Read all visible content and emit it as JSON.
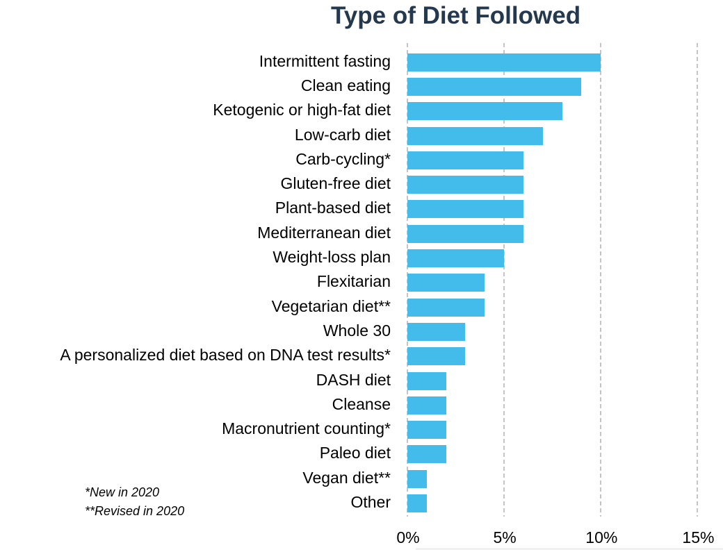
{
  "title": "Type of Diet Followed",
  "footnotes": [
    "*New in 2020",
    "**Revised in 2020"
  ],
  "chart_data": {
    "type": "bar",
    "orientation": "horizontal",
    "title": "Type of Diet Followed",
    "categories": [
      "Intermittent fasting",
      "Clean eating",
      "Ketogenic or high-fat diet",
      "Low-carb diet",
      "Carb-cycling*",
      "Gluten-free diet",
      "Plant-based diet",
      "Mediterranean diet",
      "Weight-loss plan",
      "Flexitarian",
      "Vegetarian diet**",
      "Whole 30",
      "A personalized diet based on DNA test results*",
      "DASH diet",
      "Cleanse",
      "Macronutrient counting*",
      "Paleo diet",
      "Vegan diet**",
      "Other"
    ],
    "values": [
      10,
      9,
      8,
      7,
      6,
      6,
      6,
      6,
      5,
      4,
      4,
      3,
      3,
      2,
      2,
      2,
      2,
      1,
      1
    ],
    "unit": "%",
    "xlabel": "",
    "ylabel": "",
    "x_axis": {
      "tick_labels": [
        "0%",
        "5%",
        "10%",
        "15%"
      ],
      "tick_values": [
        0,
        5,
        10,
        15
      ],
      "range": [
        0,
        15
      ]
    },
    "grid": "vertical-dashed",
    "legend": "none",
    "colors": {
      "bar": "#43BCEB",
      "title": "#24384E",
      "gridline": "#C5C5C5",
      "label": "#000000"
    }
  }
}
